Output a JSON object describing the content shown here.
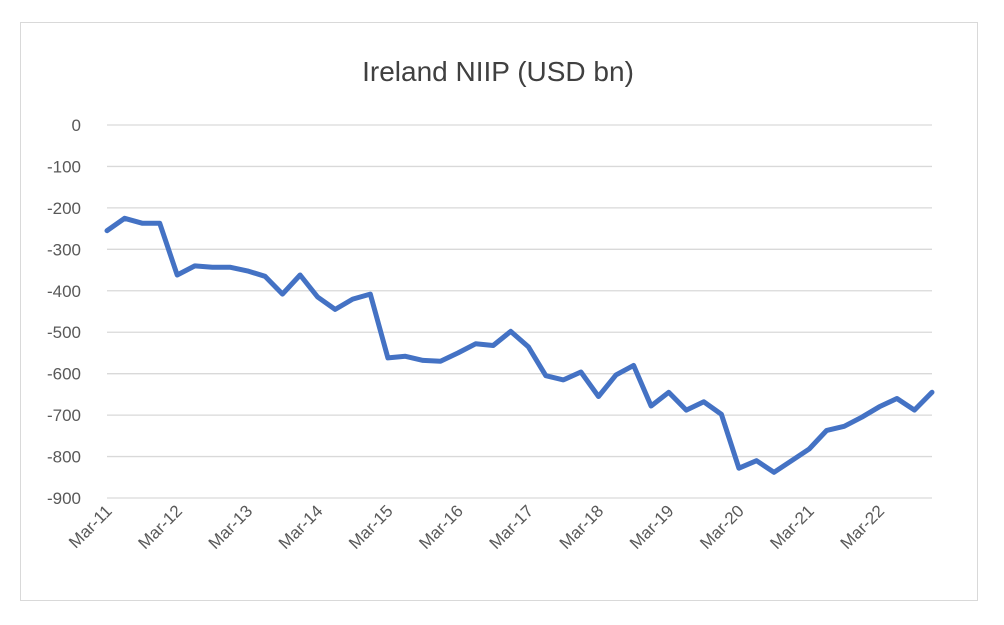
{
  "chart_data": {
    "type": "line",
    "title": "Ireland NIIP (USD bn)",
    "xlabel": "",
    "ylabel": "",
    "ylim": [
      -900,
      0
    ],
    "yticks": [
      0,
      -100,
      -200,
      -300,
      -400,
      -500,
      -600,
      -700,
      -800,
      -900
    ],
    "ytick_labels": [
      "0",
      "-100",
      "-200",
      "-300",
      "-400",
      "-500",
      "-600",
      "-700",
      "-800",
      "-900"
    ],
    "xtick_labels": [
      "Mar-11",
      "Mar-12",
      "Mar-13",
      "Mar-14",
      "Mar-15",
      "Mar-16",
      "Mar-17",
      "Mar-18",
      "Mar-19",
      "Mar-20",
      "Mar-21",
      "Mar-22"
    ],
    "grid": true,
    "legend": "none",
    "series": [
      {
        "color": "#4472C4",
        "x": [
          "Mar-11",
          "Jun-11",
          "Sep-11",
          "Dec-11",
          "Mar-12",
          "Jun-12",
          "Sep-12",
          "Dec-12",
          "Mar-13",
          "Jun-13",
          "Sep-13",
          "Dec-13",
          "Mar-14",
          "Jun-14",
          "Sep-14",
          "Dec-14",
          "Mar-15",
          "Jun-15",
          "Sep-15",
          "Dec-15",
          "Mar-16",
          "Jun-16",
          "Sep-16",
          "Dec-16",
          "Mar-17",
          "Jun-17",
          "Sep-17",
          "Dec-17",
          "Mar-18",
          "Jun-18",
          "Sep-18",
          "Dec-18",
          "Mar-19",
          "Jun-19",
          "Sep-19",
          "Dec-19",
          "Mar-20",
          "Jun-20",
          "Sep-20",
          "Dec-20",
          "Mar-21",
          "Jun-21",
          "Sep-21",
          "Dec-21",
          "Mar-22",
          "Jun-22",
          "Sep-22",
          "Dec-22"
        ],
        "values": [
          -255,
          -225,
          -237,
          -237,
          -362,
          -340,
          -343,
          -343,
          -352,
          -365,
          -408,
          -362,
          -415,
          -445,
          -420,
          -408,
          -562,
          -558,
          -568,
          -570,
          -550,
          -528,
          -532,
          -498,
          -535,
          -605,
          -615,
          -596,
          -655,
          -603,
          -580,
          -678,
          -645,
          -688,
          -668,
          -698,
          -828,
          -810,
          -838,
          -810,
          -782,
          -737,
          -727,
          -705,
          -680,
          -660,
          -688,
          -645
        ]
      }
    ]
  }
}
